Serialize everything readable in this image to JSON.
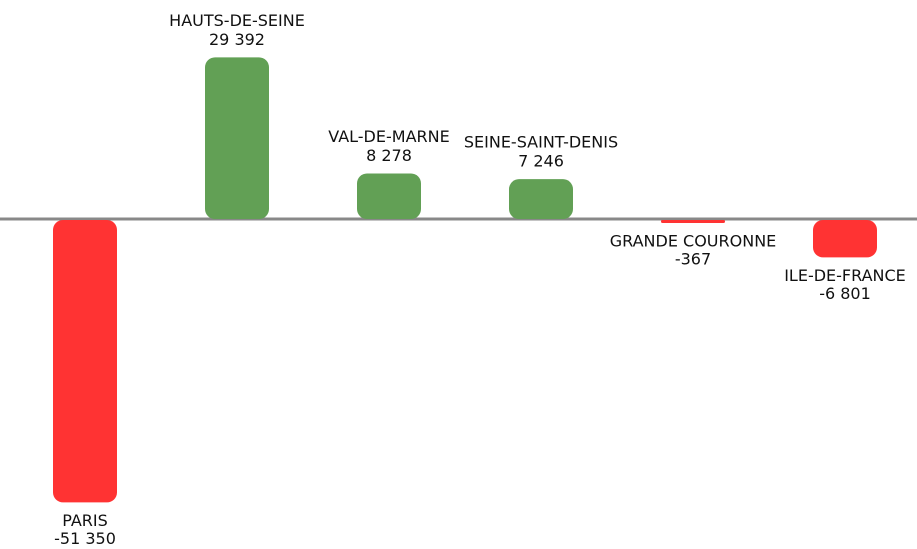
{
  "chart_data": {
    "type": "bar",
    "categories": [
      "PARIS",
      "HAUTS-DE-SEINE",
      "VAL-DE-MARNE",
      "SEINE-SAINT-DENIS",
      "GRANDE COURONNE",
      "ILE-DE-FRANCE"
    ],
    "values": [
      -51350,
      29392,
      8278,
      7246,
      -367,
      -6801
    ],
    "value_labels": [
      "-51 350",
      "29 392",
      "8 278",
      "7 246",
      "-367",
      "-6 801"
    ],
    "colors": [
      "#ff3333",
      "#62a055",
      "#62a055",
      "#62a055",
      "#ff3333",
      "#ff3333"
    ]
  }
}
